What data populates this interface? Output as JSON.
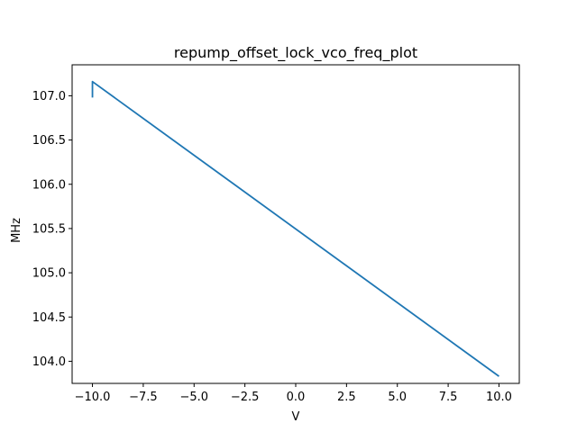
{
  "chart_data": {
    "type": "line",
    "title": "repump_offset_lock_vco_freq_plot",
    "xlabel": "V",
    "ylabel": "MHz",
    "xlim": [
      -11.0,
      11.0
    ],
    "ylim": [
      103.75,
      107.35
    ],
    "grid": false,
    "xticks": [
      -10.0,
      -7.5,
      -5.0,
      -2.5,
      0.0,
      2.5,
      5.0,
      7.5,
      10.0
    ],
    "xtick_labels": [
      "−10.0",
      "−7.5",
      "−5.0",
      "−2.5",
      "0.0",
      "2.5",
      "5.0",
      "7.5",
      "10.0"
    ],
    "yticks": [
      104.0,
      104.5,
      105.0,
      105.5,
      106.0,
      106.5,
      107.0
    ],
    "ytick_labels": [
      "104.0",
      "104.5",
      "105.0",
      "105.5",
      "106.0",
      "106.5",
      "107.0"
    ],
    "series": [
      {
        "color": "#1f77b4",
        "x": [
          -10.0,
          -10.0,
          10.0
        ],
        "y": [
          106.98,
          107.16,
          103.83
        ]
      }
    ]
  }
}
